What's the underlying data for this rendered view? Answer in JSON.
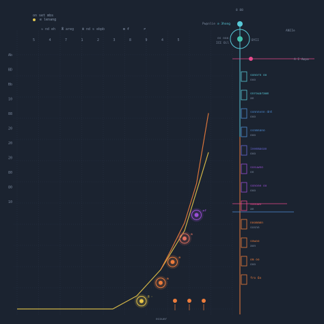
{
  "header": {
    "legend_text": "on set mbs",
    "subtitle_text": "e  lenang"
  },
  "colors": {
    "background": "#1b2330",
    "grid": "#2a3546",
    "text": "#7d8ba0",
    "accent_yellow": "#e8c64a",
    "accent_orange": "#ee7d3c",
    "accent_purple": "#9b4fd6",
    "accent_pink": "#e84a8c",
    "accent_cyan": "#58c9d8",
    "accent_teal": "#3fbfaa",
    "accent_blue": "#4f8fd8"
  },
  "top_labels": [
    "≈ nd eh",
    "Ӂ areg",
    "ӝ nd s ebp",
    "b",
    "ᵯ ᵮ",
    "≠"
  ],
  "x_tick_labels": [
    "5",
    "4",
    "7",
    "1",
    "2",
    "3",
    "8",
    "9",
    "4",
    "5"
  ],
  "y_tick_labels": [
    "Ab",
    "BD",
    "Bb",
    "10",
    "88",
    "20",
    "20",
    "20",
    "80",
    "80",
    "10"
  ],
  "corner_labels": {
    "top_right_1": "Pwpnlie",
    "top_right_2": "⊘ 3hong",
    "top_right_3": "os ooa",
    "top_right_4": "ICE Oil",
    "top_right_5": "8 88",
    "top_right_6": "BYII",
    "top_right_7": "ANIIe",
    "right_mark": "A I Ampa",
    "bottom_center": "ecouer"
  },
  "chart_data": {
    "type": "line",
    "title": "",
    "xlabel": "",
    "ylabel": "",
    "series": [
      {
        "name": "",
        "color": "#e8c64a",
        "x": [
          0,
          1,
          2,
          3,
          4,
          5,
          6,
          7,
          8
        ],
        "y": [
          0,
          0,
          0,
          0,
          0,
          0.5,
          1.5,
          3,
          6
        ]
      },
      {
        "name": "",
        "color": "#ee7d3c",
        "x": [
          6,
          6.4,
          7,
          7.5,
          8
        ],
        "y": [
          1.5,
          2.2,
          3.3,
          4.8,
          7.5
        ]
      }
    ],
    "points": [
      {
        "x": 5.2,
        "y": 0.3,
        "color": "#e8c64a",
        "label": "8 ꞏ"
      },
      {
        "x": 6.0,
        "y": 1.0,
        "color": "#ee7d3c",
        "label": "ᵯ"
      },
      {
        "x": 6.5,
        "y": 1.8,
        "color": "#ee7d3c",
        "label": "ᵯ"
      },
      {
        "x": 7.0,
        "y": 2.7,
        "color": "#e07060",
        "label": "ᵯ"
      },
      {
        "x": 7.5,
        "y": 3.6,
        "color": "#9b4fd6",
        "label": "ᵯᵮ"
      }
    ],
    "bottom_markers": [
      {
        "x": 6.6,
        "color": "#ee7d3c"
      },
      {
        "x": 7.2,
        "color": "#ee7d3c"
      },
      {
        "x": 7.8,
        "color": "#ee7d3c"
      }
    ],
    "right_panel_items": [
      {
        "label": "sonorn oo",
        "label2": "ooo",
        "color": "#58c9d8"
      },
      {
        "label": "snrouaraom",
        "label2": "an",
        "color": "#58c9d8"
      },
      {
        "label": "sonnnvnn dnt",
        "label2": "ooo",
        "color": "#4f8fd8"
      },
      {
        "label": "ssnmnano",
        "label2": "ooo",
        "color": "#4f8fd8"
      },
      {
        "label": "inemmaoan",
        "label2": "ooo",
        "color": "#6a6ad8"
      },
      {
        "label": "sosuwno",
        "label2": "on",
        "color": "#9b4fd6"
      },
      {
        "label": "sonone oo",
        "label2": "ooo",
        "color": "#9b4fd6"
      },
      {
        "label": "soouwn",
        "label2": "an",
        "color": "#e84a8c"
      },
      {
        "label": "nnomnmn",
        "label2": "sosnn",
        "color": "#ee7d3c"
      },
      {
        "label": "snwoo",
        "label2": "aon",
        "color": "#ee7d3c"
      },
      {
        "label": "om oo",
        "label2": "ooo",
        "color": "#ee7d3c"
      },
      {
        "label": "fro 6n",
        "label2": "",
        "color": "#ee7d3c"
      }
    ],
    "xlim": [
      0,
      9
    ],
    "ylim": [
      0,
      10
    ],
    "grid": true
  }
}
